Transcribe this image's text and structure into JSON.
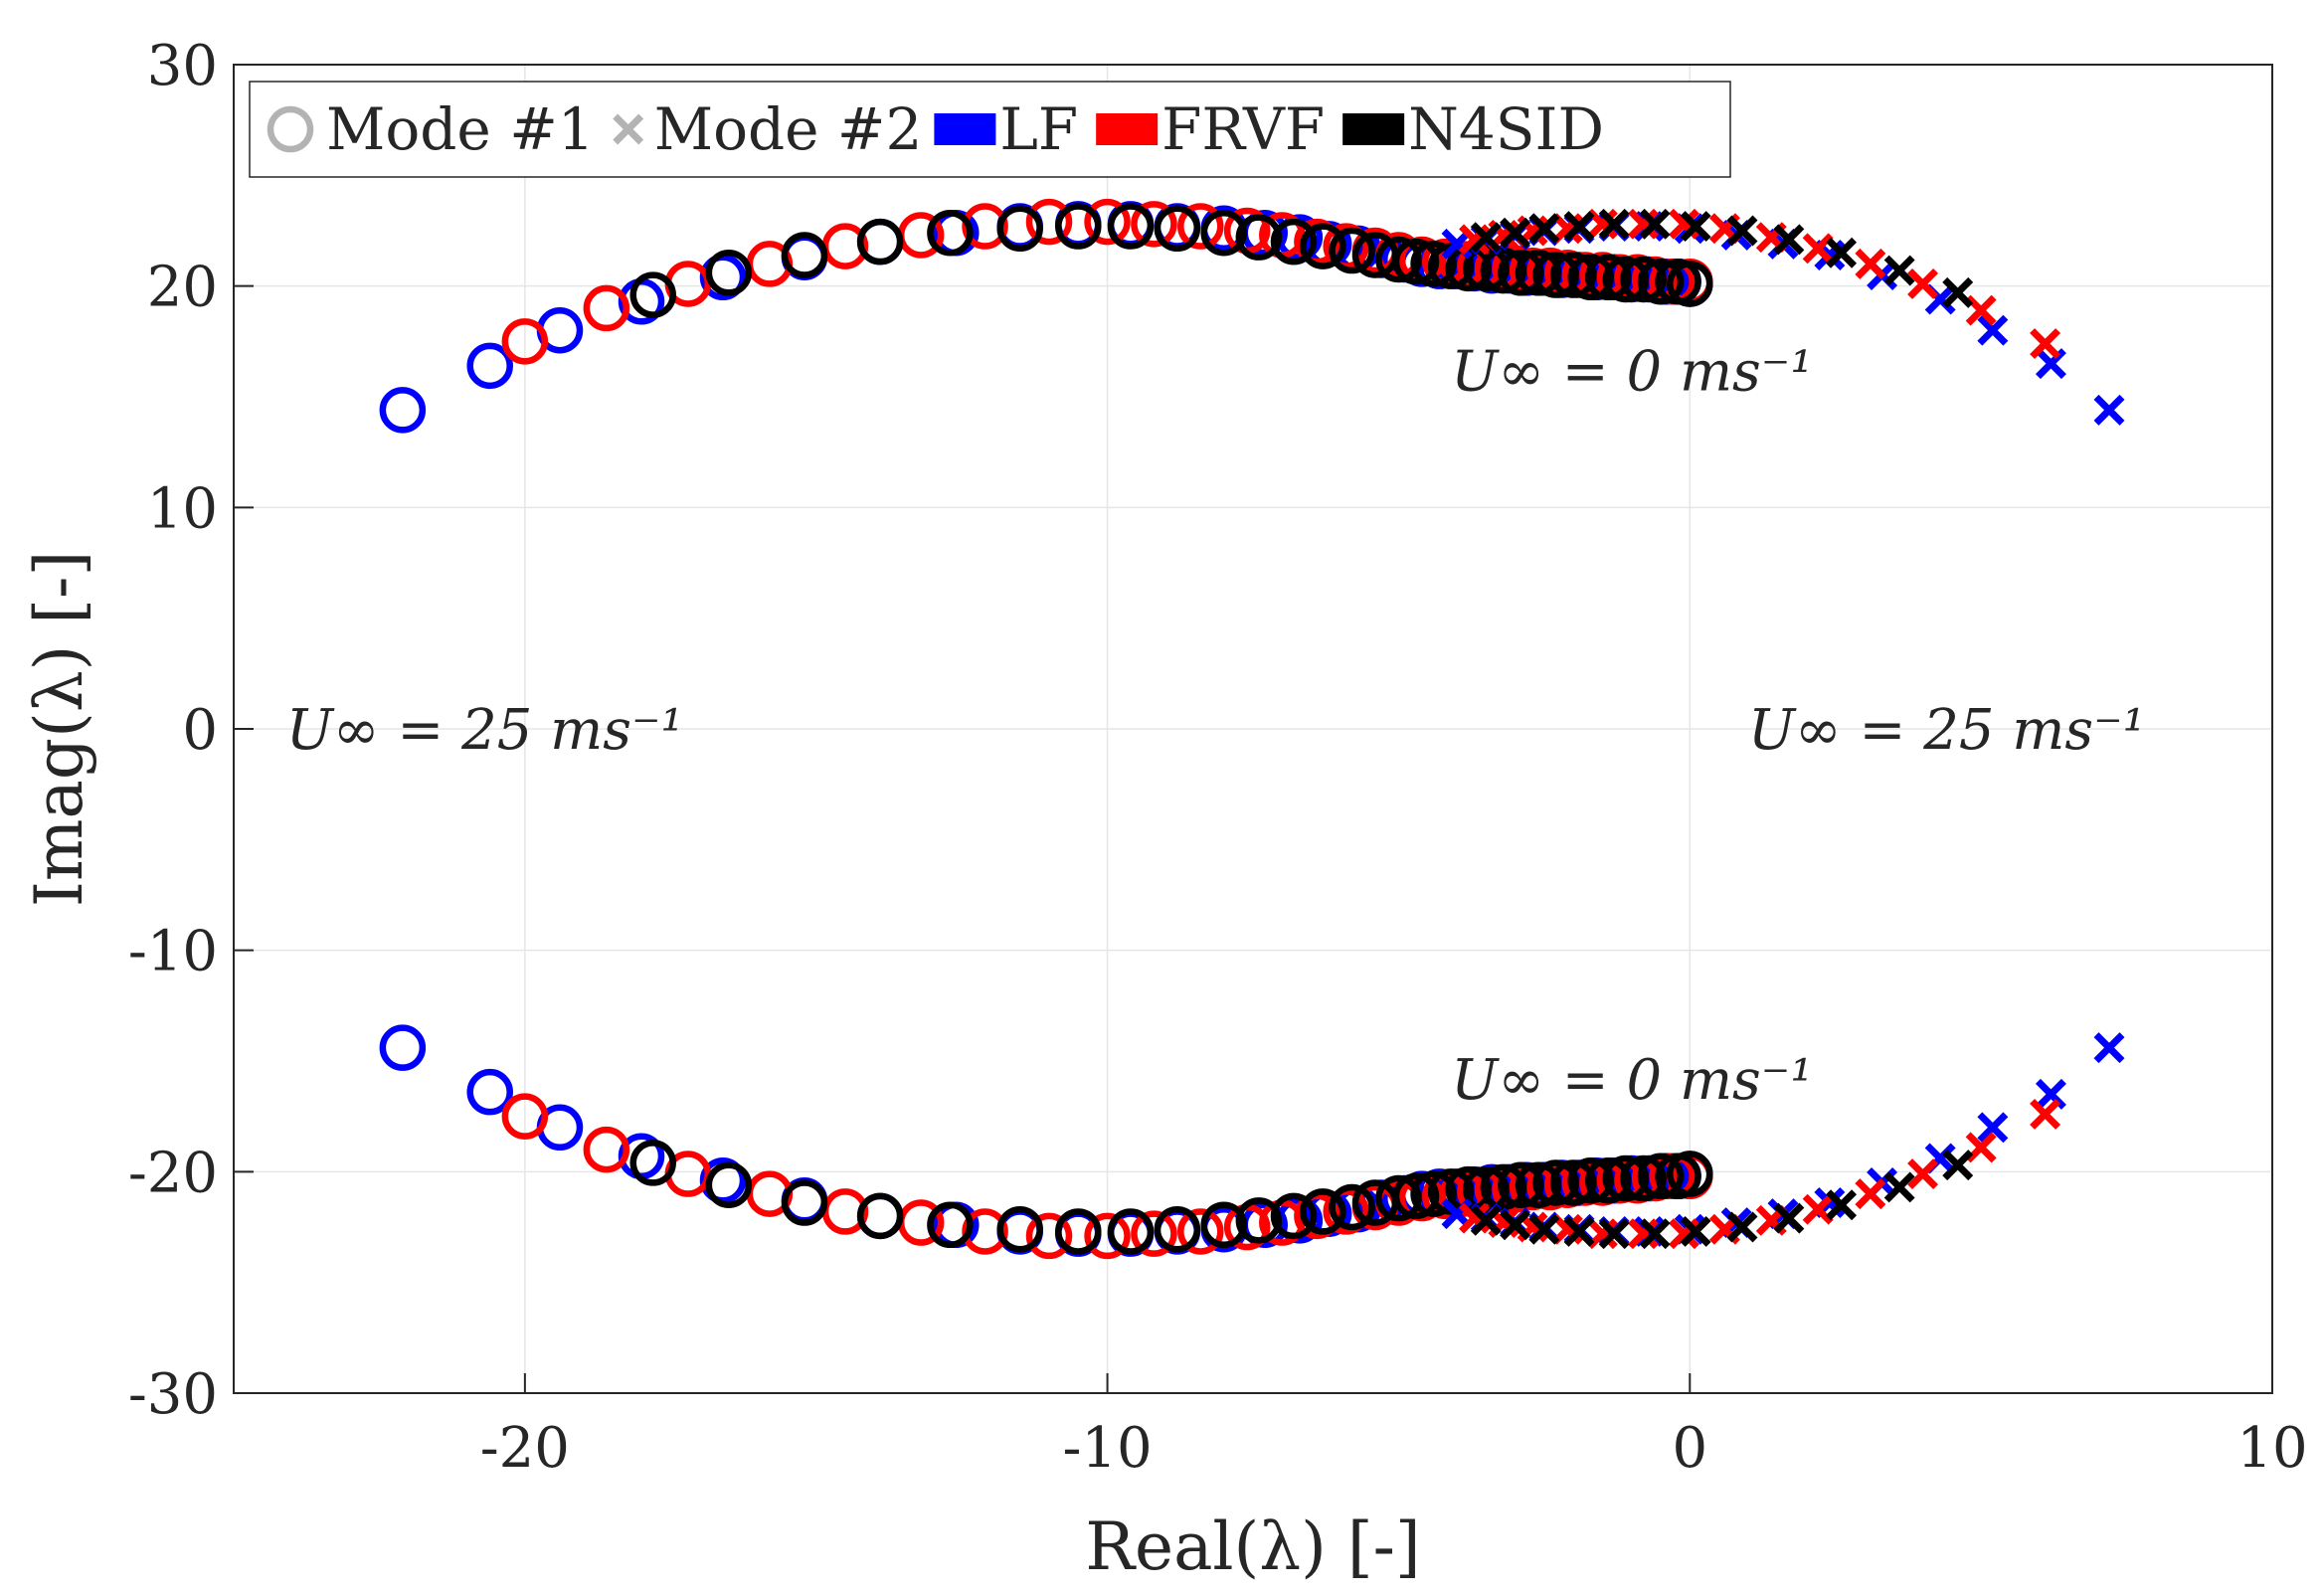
{
  "chart_data": {
    "type": "scatter",
    "title": "",
    "xlabel": "Real(λ) [-]",
    "ylabel": "Imag(λ) [-]",
    "xlim": [
      -25,
      10
    ],
    "ylim": [
      -30,
      30
    ],
    "xticks": [
      "-20",
      "-10",
      "0",
      "10"
    ],
    "yticks": [
      "30",
      "20",
      "10",
      "0",
      "-10",
      "-20",
      "-30"
    ],
    "grid": true,
    "legend_position": "top-left",
    "legend": [
      {
        "label": "Mode #1",
        "kind": "marker-o",
        "color": "#b3b3b3"
      },
      {
        "label": "Mode #2",
        "kind": "marker-x",
        "color": "#b3b3b3"
      },
      {
        "label": "LF",
        "kind": "patch",
        "color": "#0000ff"
      },
      {
        "label": "FRVF",
        "kind": "patch",
        "color": "#ff0000"
      },
      {
        "label": "N4SID",
        "kind": "patch",
        "color": "#000000"
      }
    ],
    "annotations": [
      {
        "text": "U∞ = 0 ms⁻¹",
        "x": -4.1,
        "y": 16.2
      },
      {
        "text": "U∞ = 0 ms⁻¹",
        "x": -4.1,
        "y": -15.8
      },
      {
        "text": "U∞ = 25 ms⁻¹",
        "x": -24.1,
        "y": 0.0
      },
      {
        "text": "U∞ = 25 ms⁻¹",
        "x": 1.0,
        "y": 0.0
      }
    ],
    "series": [
      {
        "name": "LF",
        "mode": "Mode #1",
        "color": "#0000ff",
        "marker": "o",
        "mirror_conjugate": true,
        "x": [
          -22.1,
          -20.6,
          -19.4,
          -18.0,
          -16.6,
          -15.2,
          -13.9,
          -12.6,
          -11.5,
          -10.5,
          -9.6,
          -8.8,
          -8.0,
          -7.3,
          -6.7,
          -6.2,
          -5.7,
          -5.3,
          -4.9,
          -4.6,
          -4.3,
          -4.0,
          -3.7,
          -3.4,
          -3.1,
          -2.8,
          -2.5,
          -2.2,
          -1.9,
          -1.6,
          -1.3,
          -1.0,
          -0.7,
          -0.4,
          -0.2,
          0.0
        ],
        "y": [
          14.4,
          16.4,
          18.0,
          19.3,
          20.4,
          21.3,
          22.0,
          22.4,
          22.7,
          22.8,
          22.8,
          22.7,
          22.6,
          22.4,
          22.2,
          21.9,
          21.7,
          21.4,
          21.2,
          21.0,
          20.9,
          20.9,
          20.8,
          20.7,
          20.7,
          20.6,
          20.6,
          20.5,
          20.5,
          20.4,
          20.4,
          20.3,
          20.3,
          20.2,
          20.2,
          20.1
        ]
      },
      {
        "name": "FRVF",
        "mode": "Mode #1",
        "color": "#ff0000",
        "marker": "o",
        "mirror_conjugate": true,
        "x": [
          -20.0,
          -18.6,
          -17.2,
          -15.8,
          -14.5,
          -13.2,
          -12.1,
          -11.0,
          -10.0,
          -9.2,
          -8.4,
          -7.6,
          -7.0,
          -6.4,
          -5.9,
          -5.4,
          -5.0,
          -4.6,
          -4.2,
          -3.9,
          -3.6,
          -3.3,
          -3.0,
          -2.7,
          -2.4,
          -2.1,
          -1.8,
          -1.5,
          -1.2,
          -0.9,
          -0.6,
          -0.3,
          0.0
        ],
        "y": [
          17.5,
          19.0,
          20.1,
          21.0,
          21.8,
          22.3,
          22.7,
          22.9,
          22.9,
          22.8,
          22.7,
          22.5,
          22.3,
          22.0,
          21.8,
          21.6,
          21.4,
          21.2,
          21.1,
          21.0,
          20.9,
          20.8,
          20.8,
          20.7,
          20.7,
          20.6,
          20.5,
          20.5,
          20.4,
          20.4,
          20.3,
          20.2,
          20.2
        ]
      },
      {
        "name": "N4SID",
        "mode": "Mode #1",
        "color": "#000000",
        "marker": "o",
        "mirror_conjugate": true,
        "x": [
          -17.8,
          -16.5,
          -15.2,
          -13.9,
          -12.7,
          -11.5,
          -10.5,
          -9.6,
          -8.8,
          -8.0,
          -7.4,
          -6.8,
          -6.3,
          -5.8,
          -5.4,
          -5.0,
          -4.7,
          -4.4,
          -4.1,
          -3.8,
          -3.5,
          -3.2,
          -2.9,
          -2.6,
          -2.3,
          -2.0,
          -1.7,
          -1.4,
          -1.1,
          -0.8,
          -0.5,
          -0.2,
          0.0
        ],
        "y": [
          19.6,
          20.6,
          21.4,
          22.0,
          22.4,
          22.6,
          22.7,
          22.7,
          22.6,
          22.4,
          22.2,
          22.0,
          21.8,
          21.6,
          21.4,
          21.2,
          21.1,
          21.0,
          20.9,
          20.8,
          20.8,
          20.7,
          20.6,
          20.6,
          20.5,
          20.5,
          20.4,
          20.4,
          20.3,
          20.3,
          20.2,
          20.2,
          20.1
        ]
      },
      {
        "name": "LF",
        "mode": "Mode #2",
        "color": "#0000ff",
        "marker": "x",
        "mirror_conjugate": true,
        "x": [
          7.2,
          6.2,
          5.2,
          4.3,
          3.3,
          2.4,
          1.6,
          0.8,
          0.0,
          -0.7,
          -1.3,
          -1.9,
          -2.5,
          -3.0,
          -3.5,
          -4.0
        ],
        "y": [
          14.4,
          16.5,
          18.0,
          19.4,
          20.5,
          21.4,
          21.9,
          22.3,
          22.6,
          22.7,
          22.7,
          22.6,
          22.5,
          22.3,
          22.1,
          21.9
        ]
      },
      {
        "name": "FRVF",
        "mode": "Mode #2",
        "color": "#ff0000",
        "marker": "x",
        "mirror_conjugate": true,
        "x": [
          6.1,
          5.0,
          4.0,
          3.1,
          2.2,
          1.4,
          0.6,
          -0.1,
          -0.8,
          -1.5,
          -2.1,
          -2.7,
          -3.2,
          -3.7
        ],
        "y": [
          17.4,
          18.9,
          20.1,
          21.0,
          21.7,
          22.2,
          22.6,
          22.8,
          22.8,
          22.8,
          22.6,
          22.5,
          22.3,
          22.1
        ]
      },
      {
        "name": "N4SID",
        "mode": "Mode #2",
        "color": "#000000",
        "marker": "x",
        "mirror_conjugate": true,
        "x": [
          4.6,
          3.6,
          2.6,
          1.7,
          0.9,
          0.1,
          -0.6,
          -1.3,
          -1.9,
          -2.5,
          -3.0,
          -3.5
        ],
        "y": [
          19.7,
          20.7,
          21.5,
          22.1,
          22.5,
          22.7,
          22.8,
          22.8,
          22.7,
          22.6,
          22.4,
          22.2
        ]
      }
    ]
  }
}
